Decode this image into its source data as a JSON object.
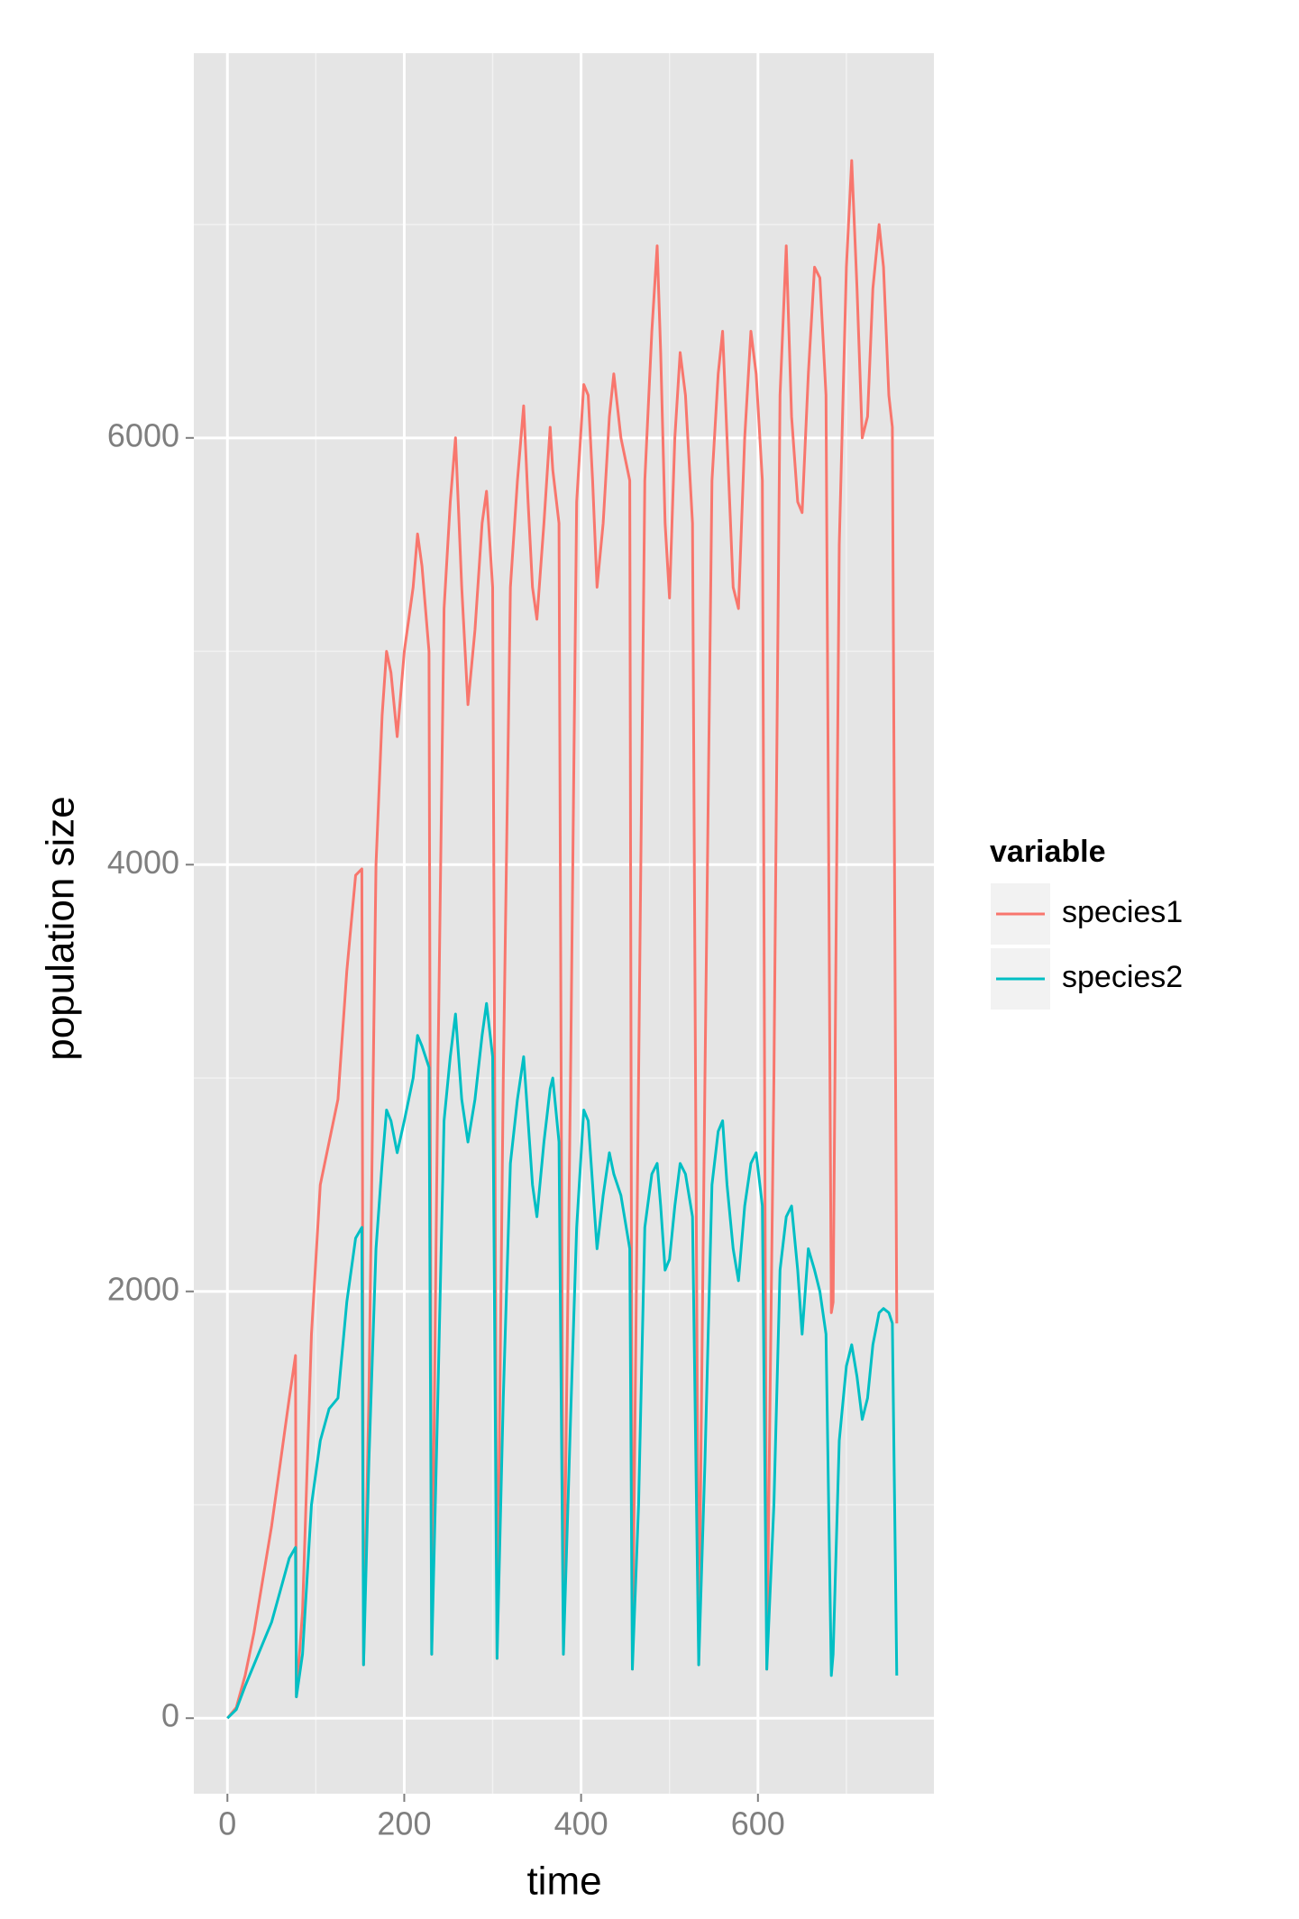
{
  "chart_data": {
    "type": "line",
    "x_label": "time",
    "y_label": "population size",
    "legend_title": "variable",
    "legend_position": "right",
    "grid": true,
    "xlim": [
      -38,
      799
    ],
    "ylim": [
      -354,
      7803
    ],
    "xticks": [
      0,
      200,
      400,
      600
    ],
    "yticks": [
      0,
      2000,
      4000,
      6000
    ],
    "x_minor_ticks": [
      100,
      300,
      500,
      700
    ],
    "y_minor_ticks": [
      1000,
      3000,
      5000,
      7000
    ],
    "x": [
      0,
      10,
      20,
      30,
      40,
      50,
      60,
      70,
      77,
      78,
      85,
      95,
      105,
      115,
      125,
      135,
      145,
      152,
      154,
      160,
      168,
      175,
      180,
      185,
      192,
      200,
      210,
      215,
      220,
      228,
      231,
      238,
      245,
      252,
      258,
      265,
      272,
      280,
      288,
      293,
      300,
      305,
      312,
      320,
      328,
      335,
      340,
      345,
      350,
      358,
      365,
      368,
      375,
      380,
      388,
      395,
      403,
      408,
      413,
      418,
      425,
      432,
      437,
      445,
      455,
      458,
      465,
      472,
      480,
      486,
      490,
      495,
      500,
      506,
      512,
      518,
      526,
      533,
      540,
      548,
      555,
      560,
      565,
      572,
      578,
      585,
      592,
      598,
      605,
      610,
      618,
      625,
      632,
      638,
      645,
      650,
      657,
      664,
      670,
      677,
      683,
      685,
      692,
      700,
      706,
      712,
      718,
      724,
      730,
      737,
      742,
      748,
      752,
      757
    ],
    "series": [
      {
        "name": "species1",
        "color": "#f8766d",
        "values": [
          0,
          50,
          200,
          400,
          650,
          900,
          1200,
          1500,
          1700,
          100,
          500,
          1800,
          2500,
          2700,
          2900,
          3500,
          3950,
          3980,
          250,
          1500,
          4000,
          4700,
          5000,
          4900,
          4600,
          5000,
          5300,
          5550,
          5400,
          5000,
          300,
          3000,
          5200,
          5700,
          6000,
          5300,
          4750,
          5100,
          5600,
          5750,
          5300,
          280,
          3000,
          5300,
          5800,
          6150,
          5700,
          5300,
          5150,
          5600,
          6050,
          5850,
          5600,
          300,
          3000,
          5700,
          6250,
          6200,
          5800,
          5300,
          5600,
          6100,
          6300,
          6000,
          5800,
          230,
          3000,
          5800,
          6500,
          6900,
          6400,
          5600,
          5250,
          6000,
          6400,
          6200,
          5600,
          250,
          3000,
          5800,
          6300,
          6500,
          6000,
          5300,
          5200,
          6000,
          6500,
          6300,
          5800,
          230,
          3000,
          6200,
          6900,
          6100,
          5700,
          5650,
          6300,
          6800,
          6750,
          6200,
          1900,
          1950,
          5500,
          6800,
          7300,
          6700,
          6000,
          6100,
          6700,
          7000,
          6800,
          6200,
          6050,
          1850
        ]
      },
      {
        "name": "species2",
        "color": "#00bfc4",
        "values": [
          0,
          40,
          150,
          250,
          350,
          450,
          600,
          750,
          800,
          100,
          300,
          1000,
          1300,
          1450,
          1500,
          1950,
          2250,
          2300,
          250,
          1200,
          2200,
          2600,
          2850,
          2800,
          2650,
          2800,
          3000,
          3200,
          3150,
          3050,
          300,
          1500,
          2800,
          3100,
          3300,
          2900,
          2700,
          2900,
          3200,
          3350,
          3100,
          280,
          1500,
          2600,
          2900,
          3100,
          2800,
          2500,
          2350,
          2700,
          2950,
          3000,
          2700,
          300,
          1400,
          2300,
          2850,
          2800,
          2500,
          2200,
          2450,
          2650,
          2550,
          2450,
          2200,
          230,
          1000,
          2300,
          2550,
          2600,
          2400,
          2100,
          2150,
          2400,
          2600,
          2550,
          2350,
          250,
          1200,
          2500,
          2750,
          2800,
          2500,
          2200,
          2050,
          2400,
          2600,
          2650,
          2400,
          230,
          1000,
          2100,
          2350,
          2400,
          2100,
          1800,
          2200,
          2100,
          2000,
          1800,
          200,
          300,
          1300,
          1650,
          1750,
          1600,
          1400,
          1500,
          1750,
          1900,
          1920,
          1900,
          1850,
          200
        ]
      }
    ]
  }
}
